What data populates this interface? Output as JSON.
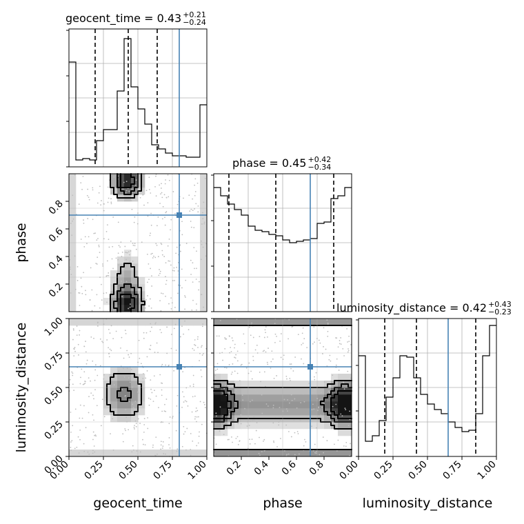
{
  "chart_data": {
    "type": "corner",
    "parameters": [
      "geocent_time",
      "phase",
      "luminosity_distance"
    ],
    "ranges": {
      "geocent_time": [
        0.0,
        1.0
      ],
      "phase": [
        0.0,
        1.0
      ],
      "luminosity_distance": [
        0.0,
        1.0
      ]
    },
    "truths": {
      "geocent_time": 0.8,
      "phase": 0.7,
      "luminosity_distance": 0.65
    },
    "truth_color": "#4682b4",
    "bins": 20,
    "titles": [
      {
        "param": "geocent_time",
        "text": "geocent_time = 0.43",
        "sup": "+0.21",
        "sub": "−0.24"
      },
      {
        "param": "phase",
        "text": "phase = 0.45",
        "sup": "+0.42",
        "sub": "−0.34"
      },
      {
        "param": "luminosity_distance",
        "text": "luminosity_distance = 0.42",
        "sup": "+0.43",
        "sub": "−0.23"
      }
    ],
    "quantiles": {
      "geocent_time": [
        0.19,
        0.43,
        0.64
      ],
      "phase": [
        0.11,
        0.45,
        0.87
      ],
      "luminosity_distance": [
        0.19,
        0.42,
        0.85
      ]
    },
    "histograms": {
      "geocent_time": [
        0.76,
        0.05,
        0.06,
        0.05,
        0.19,
        0.27,
        0.27,
        0.55,
        0.93,
        0.58,
        0.42,
        0.31,
        0.16,
        0.13,
        0.1,
        0.08,
        0.08,
        0.07,
        0.07,
        0.45
      ],
      "phase": [
        0.9,
        0.84,
        0.78,
        0.74,
        0.7,
        0.62,
        0.59,
        0.58,
        0.56,
        0.55,
        0.52,
        0.5,
        0.51,
        0.52,
        0.53,
        0.64,
        0.65,
        0.82,
        0.84,
        0.9
      ],
      "luminosity_distance": [
        0.73,
        0.11,
        0.15,
        0.26,
        0.43,
        0.57,
        0.73,
        0.72,
        0.57,
        0.45,
        0.38,
        0.34,
        0.31,
        0.25,
        0.21,
        0.18,
        0.19,
        0.31,
        0.73,
        0.95
      ]
    },
    "xlabels": [
      "geocent_time",
      "phase",
      "luminosity_distance"
    ],
    "ylabels": [
      "phase",
      "luminosity_distance"
    ],
    "xticks": {
      "geocent_time": [
        "0.00",
        "0.25",
        "0.50",
        "0.75",
        "1.00"
      ],
      "phase": [
        "0.2",
        "0.4",
        "0.6",
        "0.8"
      ],
      "luminosity_distance": [
        "0.00",
        "0.25",
        "0.50",
        "0.75",
        "1.00"
      ]
    },
    "yticks": {
      "phase": [
        "0.2",
        "0.4",
        "0.6",
        "0.8"
      ],
      "luminosity_distance": [
        "0.00",
        "0.25",
        "0.50",
        "0.75",
        "1.00"
      ]
    },
    "grid": true
  }
}
